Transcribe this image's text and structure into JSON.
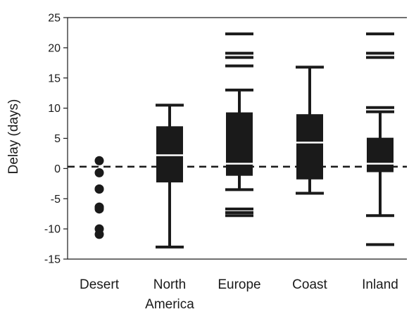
{
  "chart_data": {
    "type": "box",
    "ylabel": "Delay (days)",
    "xlabel": "",
    "ylim": [
      -15,
      25
    ],
    "yticks": [
      25,
      20,
      15,
      10,
      5,
      0,
      -5,
      -10,
      -15
    ],
    "reference_line": {
      "y": 0.3,
      "style": "dashed"
    },
    "grid": false,
    "categories": [
      "Desert",
      "North America",
      "Europe",
      "Coast",
      "Inland"
    ],
    "category_labels": [
      [
        "Desert"
      ],
      [
        "North",
        "America"
      ],
      [
        "Europe"
      ],
      [
        "Coast"
      ],
      [
        "Inland"
      ]
    ],
    "boxes": [
      {
        "category": "Desert",
        "points": [
          1.3,
          -0.7,
          -3.4,
          -3.4,
          -6.4,
          -6.7,
          -6.4,
          -10.0,
          -10.9
        ]
      },
      {
        "category": "North America",
        "whisker_low": -13.0,
        "q1": -2.3,
        "median": 2.2,
        "q3": 7.0,
        "whisker_high": 10.5,
        "outliers": []
      },
      {
        "category": "Europe",
        "whisker_low": -3.5,
        "q1": -1.2,
        "median": 0.8,
        "q3": 9.3,
        "whisker_high": 13.0,
        "outliers": [
          22.3,
          19.1,
          18.4,
          17.0,
          -6.7,
          -7.3,
          -7.8
        ]
      },
      {
        "category": "Coast",
        "whisker_low": -4.1,
        "q1": -1.8,
        "median": 4.3,
        "q3": 9.0,
        "whisker_high": 16.8,
        "outliers": []
      },
      {
        "category": "Inland",
        "whisker_low": -7.8,
        "q1": -0.6,
        "median": 0.8,
        "q3": 5.1,
        "whisker_high": 9.4,
        "outliers": [
          22.3,
          19.1,
          18.4,
          10.1,
          -12.6
        ]
      }
    ],
    "color": "#1a1a1a"
  }
}
